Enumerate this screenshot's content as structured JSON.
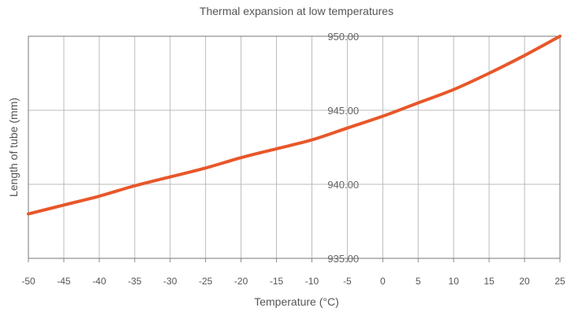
{
  "chart_data": {
    "type": "line",
    "title": "Thermal expansion at low temperatures",
    "xlabel": "Temperature (°C)",
    "ylabel": "Length of tube (mm)",
    "xlim": [
      -50,
      25
    ],
    "ylim": [
      935,
      950
    ],
    "x_ticks": [
      "-50",
      "-45",
      "-40",
      "-35",
      "-30",
      "-25",
      "-20",
      "-15",
      "-10",
      "-5",
      "0",
      "5",
      "10",
      "15",
      "20",
      "25"
    ],
    "y_ticks": [
      "935.00",
      "940.00",
      "945.00",
      "950.00"
    ],
    "grid": true,
    "series": [
      {
        "color": "#e8572a",
        "x": [
          -50,
          -45,
          -40,
          -35,
          -30,
          -25,
          -20,
          -15,
          -10,
          -5,
          0,
          5,
          10,
          15,
          20,
          25
        ],
        "y": [
          938.0,
          938.6,
          939.2,
          939.9,
          940.5,
          941.1,
          941.8,
          942.4,
          943.0,
          943.8,
          944.6,
          945.5,
          946.4,
          947.5,
          948.7,
          950.0
        ]
      }
    ]
  }
}
